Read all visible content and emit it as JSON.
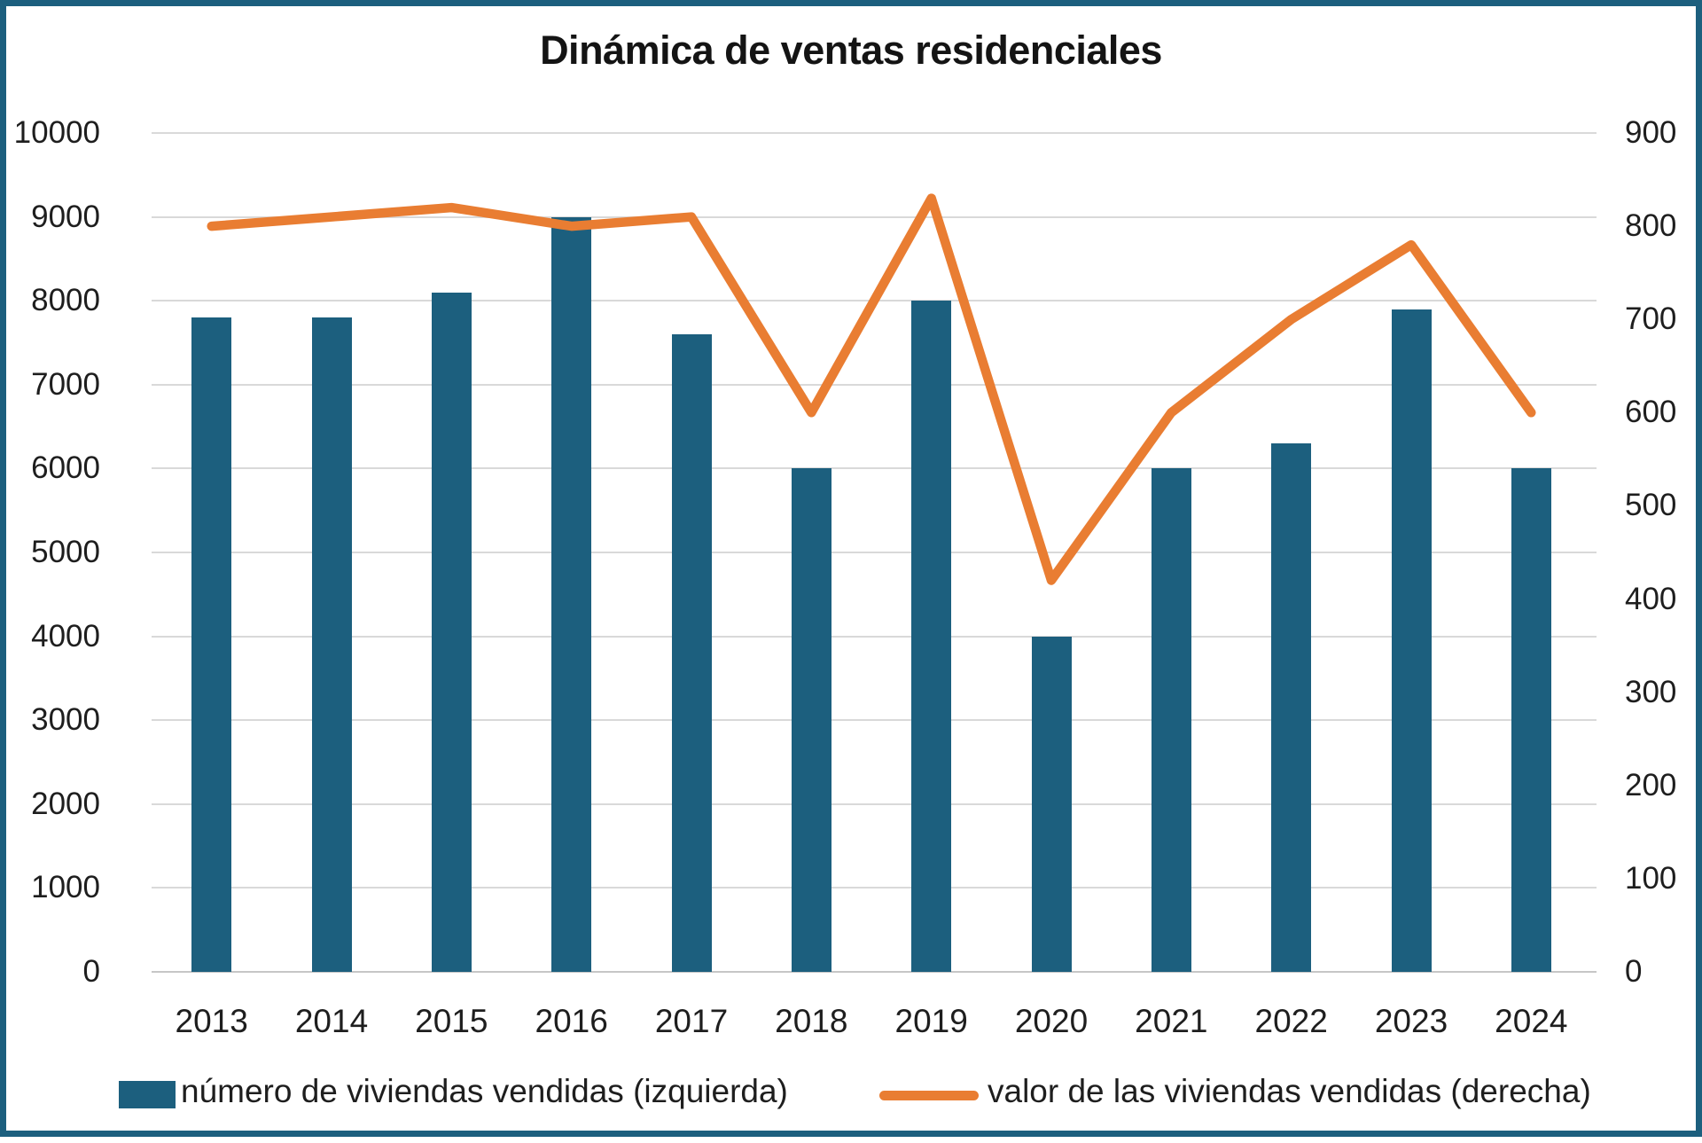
{
  "chart_data": {
    "type": "combo",
    "title": "Dinámica de ventas residenciales",
    "categories": [
      "2013",
      "2014",
      "2015",
      "2016",
      "2017",
      "2018",
      "2019",
      "2020",
      "2021",
      "2022",
      "2023",
      "2024"
    ],
    "series": [
      {
        "name": "número de viviendas vendidas (izquierda)",
        "type": "bar",
        "axis": "left",
        "color": "#1c5f7e",
        "values": [
          7800,
          7800,
          8100,
          9000,
          7600,
          6000,
          8000,
          4000,
          6000,
          6300,
          7900,
          6000
        ]
      },
      {
        "name": "valor de las viviendas vendidas (derecha)",
        "type": "line",
        "axis": "right",
        "color": "#e97d32",
        "values": [
          800,
          810,
          820,
          800,
          810,
          600,
          830,
          420,
          600,
          700,
          780,
          600
        ]
      }
    ],
    "axes": {
      "left": {
        "min": 0,
        "max": 10000,
        "step": 1000,
        "tick_labels": [
          "10000",
          "9000",
          "8000",
          "7000",
          "6000",
          "5000",
          "4000",
          "3000",
          "2000",
          "1000",
          "0"
        ]
      },
      "right": {
        "min": 0,
        "max": 900,
        "step": 100,
        "tick_labels": [
          "900",
          "800",
          "700",
          "600",
          "500",
          "400",
          "300",
          "200",
          "100",
          "0"
        ]
      }
    },
    "grid": true,
    "legend_position": "bottom"
  },
  "legend": {
    "items": [
      {
        "label": "número de viviendas vendidas (izquierda)",
        "swatch": "bar",
        "color": "#1c5f7e"
      },
      {
        "label": "valor de las viviendas vendidas (derecha)",
        "swatch": "line",
        "color": "#e97d32"
      }
    ]
  },
  "colors": {
    "bar": "#1c5f7e",
    "line": "#e97d32",
    "grid": "#d9d9d9",
    "frame": "#1c5f7e",
    "text": "#1c1c1c"
  }
}
